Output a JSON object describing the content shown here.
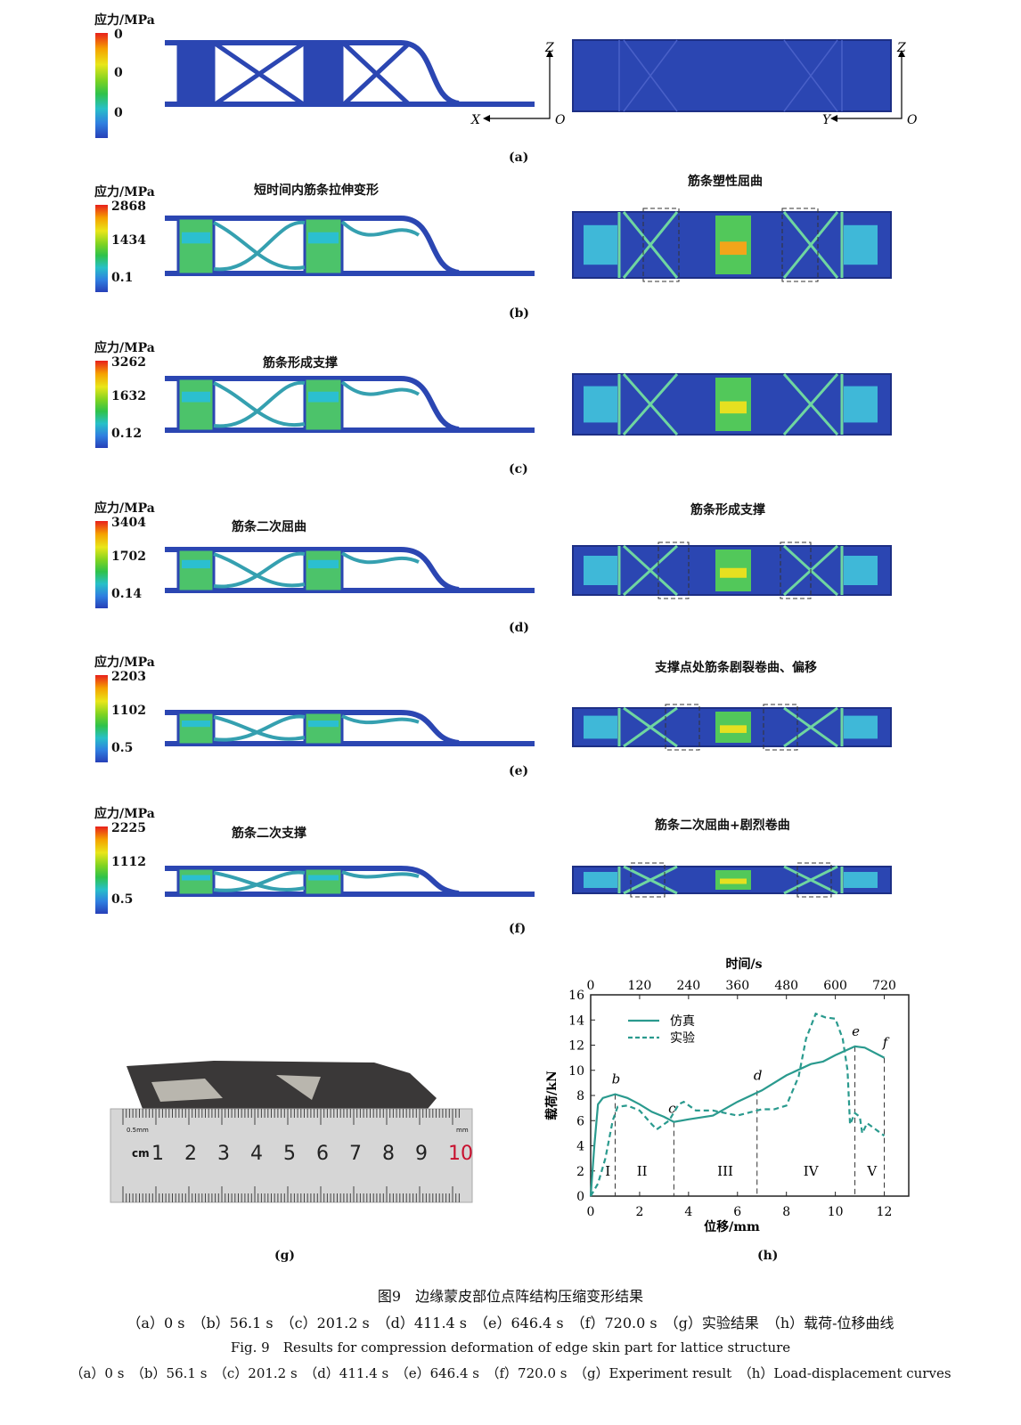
{
  "panels": [
    {
      "id": "a",
      "label": "(a)",
      "legend_title": "应力/MPa",
      "ticks": [
        "0",
        "0",
        "0"
      ],
      "annot_left": "",
      "annot_right": "",
      "axes_left": {
        "h": "X",
        "v": "Z",
        "o": "O"
      },
      "axes_right": {
        "h": "Y",
        "v": "Z",
        "o": "O"
      }
    },
    {
      "id": "b",
      "label": "(b)",
      "legend_title": "应力/MPa",
      "ticks": [
        "2868",
        "1434",
        "0.1"
      ],
      "annot_left": "短时间内筋条拉伸变形",
      "annot_right": "筋条塑性屈曲"
    },
    {
      "id": "c",
      "label": "(c)",
      "legend_title": "应力/MPa",
      "ticks": [
        "3262",
        "1632",
        "0.12"
      ],
      "annot_left": "筋条形成支撑",
      "annot_right": ""
    },
    {
      "id": "d",
      "label": "(d)",
      "legend_title": "应力/MPa",
      "ticks": [
        "3404",
        "1702",
        "0.14"
      ],
      "annot_left": "筋条二次屈曲",
      "annot_right": "筋条形成支撑"
    },
    {
      "id": "e",
      "label": "(e)",
      "legend_title": "应力/MPa",
      "ticks": [
        "2203",
        "1102",
        "0.5"
      ],
      "annot_left": "",
      "annot_right": "支撑点处筋条剧裂卷曲、偏移"
    },
    {
      "id": "f",
      "label": "(f)",
      "legend_title": "应力/MPa",
      "ticks": [
        "2225",
        "1112",
        "0.5"
      ],
      "annot_left": "筋条二次支撑",
      "annot_right": "筋条二次屈曲+剧烈卷曲"
    }
  ],
  "photo": {
    "label": "(g)",
    "ruler_unit": "cm",
    "ruler_numbers": [
      "1",
      "2",
      "3",
      "4",
      "5",
      "6",
      "7",
      "8",
      "9",
      "10"
    ],
    "ruler_sub": "0.5mm",
    "ruler_mm": "mm",
    "colors": {
      "ten": "#c8102e"
    }
  },
  "chart_data": {
    "type": "line",
    "label": "(h)",
    "xlabel": "位移/mm",
    "ylabel": "载荷/kN",
    "x2label": "时间/s",
    "xlim": [
      0,
      13
    ],
    "ylim": [
      0,
      16
    ],
    "xticks": [
      "0",
      "2",
      "4",
      "6",
      "8",
      "10",
      "12"
    ],
    "yticks": [
      "0",
      "2",
      "4",
      "6",
      "8",
      "10",
      "12",
      "14",
      "16"
    ],
    "x2ticks": [
      "0",
      "120",
      "240",
      "360",
      "480",
      "600",
      "720"
    ],
    "legend_position": "top-left",
    "color": "#2a9a8e",
    "series": [
      {
        "name": "仿真",
        "style": "solid",
        "x": [
          0,
          0.15,
          0.3,
          0.5,
          1,
          1.5,
          2,
          2.5,
          3,
          3.4,
          4,
          5,
          6,
          7,
          8,
          9,
          9.5,
          10,
          10.8,
          11.2,
          12
        ],
        "y": [
          0,
          4,
          7.3,
          7.8,
          8.1,
          7.8,
          7.3,
          6.7,
          6.3,
          5.9,
          6.1,
          6.4,
          7.5,
          8.4,
          9.6,
          10.5,
          10.7,
          11.2,
          11.9,
          11.8,
          11.0
        ]
      },
      {
        "name": "实验",
        "style": "dashed",
        "x": [
          0,
          0.3,
          0.6,
          0.9,
          1.1,
          1.5,
          2,
          2.5,
          2.7,
          3.2,
          3.6,
          3.8,
          4.3,
          5,
          6,
          7,
          7.5,
          8,
          8.5,
          8.8,
          9.2,
          9.6,
          10,
          10.3,
          10.5,
          10.6,
          10.8,
          11,
          11.1,
          11.3,
          12
        ],
        "y": [
          0,
          1,
          3,
          6,
          7.1,
          7.2,
          6.8,
          5.7,
          5.3,
          6,
          7.3,
          7.5,
          6.8,
          6.8,
          6.4,
          6.9,
          6.9,
          7.2,
          9.5,
          12.5,
          14.5,
          14.2,
          14.1,
          12.5,
          10,
          5.7,
          6.6,
          6.3,
          5,
          5.8,
          4.8
        ]
      }
    ],
    "markers": [
      {
        "label": "b",
        "x": 1,
        "y": 8.1
      },
      {
        "label": "c",
        "x": 3.4,
        "y": 5.9
      },
      {
        "label": "d",
        "x": 6.8,
        "y": 8.4
      },
      {
        "label": "e",
        "x": 10.8,
        "y": 11.9
      },
      {
        "label": "f",
        "x": 12,
        "y": 11.0
      }
    ],
    "regions": [
      {
        "label": "I",
        "x": 0.7
      },
      {
        "label": "II",
        "x": 2.1
      },
      {
        "label": "III",
        "x": 5.5
      },
      {
        "label": "IV",
        "x": 9.0
      },
      {
        "label": "V",
        "x": 11.5
      }
    ]
  },
  "caption": {
    "cn_title": "图9　边缘蒙皮部位点阵结构压缩变形结果",
    "cn_sub": "（a）0 s　（b）56.1 s　（c）201.2 s　（d）411.4 s　（e）646.4 s　（f）720.0 s　（g）实验结果　（h）载荷-位移曲线",
    "en_title": "Fig. 9　Results for compression deformation of edge skin part for lattice structure",
    "en_sub": "（a）0 s　（b）56.1 s　（c）201.2 s　（d）411.4 s　（e）646.4 s　（f）720.0 s　（g）Experiment result　（h）Load-displacement curves"
  }
}
